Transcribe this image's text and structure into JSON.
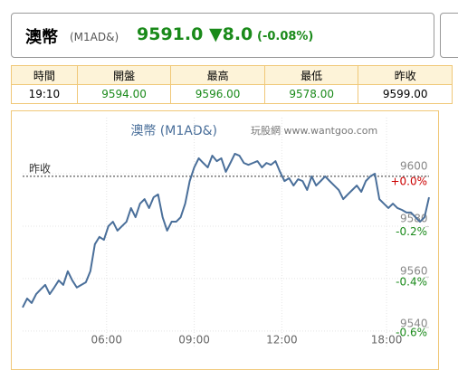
{
  "header": {
    "name": "澳幣",
    "code": "(M1AD&)",
    "price": "9591.0",
    "change": "▼8.0",
    "change_pct": "(-0.08%)"
  },
  "table": {
    "columns": [
      "時間",
      "開盤",
      "最高",
      "最低",
      "昨收"
    ],
    "rows": [
      [
        "19:10",
        "9594.00",
        "9596.00",
        "9578.00",
        "9599.00"
      ]
    ]
  },
  "chart_data": {
    "type": "line",
    "title": "澳幣 (M1AD&)",
    "watermark": "玩股網 www.wantgoo.com",
    "series": [
      {
        "name": "澳幣",
        "color": "#4a6f9a",
        "values": [
          9549.0,
          9552.4,
          9550.7,
          9554.1,
          9555.9,
          9557.6,
          9554.1,
          9556.6,
          9559.3,
          9557.6,
          9562.8,
          9559.3,
          9556.6,
          9557.6,
          9558.6,
          9562.8,
          9573.1,
          9575.9,
          9574.8,
          9580.0,
          9581.7,
          9578.3,
          9580.0,
          9581.7,
          9586.9,
          9583.4,
          9588.6,
          9590.3,
          9586.9,
          9591.0,
          9592.1,
          9583.4,
          9578.3,
          9581.7,
          9581.7,
          9583.4,
          9588.6,
          9597.2,
          9602.4,
          9605.9,
          9604.1,
          9602.4,
          9606.9,
          9604.8,
          9605.9,
          9600.7,
          9604.1,
          9607.6,
          9606.9,
          9604.1,
          9603.4,
          9604.1,
          9604.8,
          9602.4,
          9604.1,
          9603.4,
          9604.8,
          9600.7,
          9597.2,
          9598.3,
          9595.5,
          9597.9,
          9597.2,
          9593.8,
          9599.0,
          9595.5,
          9597.2,
          9599.0,
          9597.2,
          9595.5,
          9593.8,
          9590.3,
          9592.1,
          9593.8,
          9595.5,
          9593.1,
          9597.2,
          9599.0,
          9600.0,
          9590.3,
          9588.6,
          9586.9,
          9588.6,
          9586.9,
          9586.2,
          9585.2,
          9585.2,
          9583.4,
          9581.7,
          9583.4,
          9591.0
        ]
      }
    ],
    "xlim": [
      0,
      90
    ],
    "xticks": [
      {
        "value": 18.6,
        "label": "06:00"
      },
      {
        "value": 38,
        "label": "09:00"
      },
      {
        "value": 57.4,
        "label": "12:00"
      },
      {
        "value": 80.6,
        "label": "18:00"
      }
    ],
    "ylim": [
      9533.4,
      9621.4
    ],
    "yticks": [
      9540,
      9560,
      9580,
      9600
    ],
    "y2lim": [
      -0.683,
      0.233
    ],
    "y2ticks": [
      {
        "value": 0,
        "label": "+0.0%"
      },
      {
        "value": -0.2,
        "label": "-0.2%"
      },
      {
        "value": -0.4,
        "label": "-0.4%"
      },
      {
        "value": -0.6,
        "label": "-0.6%"
      }
    ],
    "reference": {
      "label": "昨收",
      "value": 9599
    },
    "grid": true
  }
}
